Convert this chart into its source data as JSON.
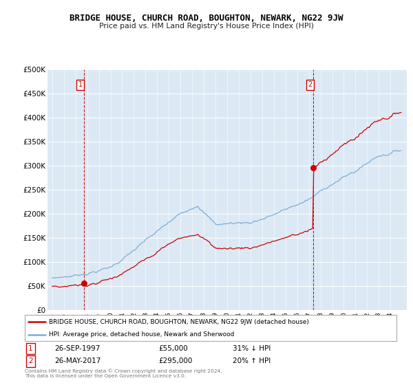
{
  "title": "BRIDGE HOUSE, CHURCH ROAD, BOUGHTON, NEWARK, NG22 9JW",
  "subtitle": "Price paid vs. HM Land Registry's House Price Index (HPI)",
  "legend_line1": "BRIDGE HOUSE, CHURCH ROAD, BOUGHTON, NEWARK, NG22 9JW (detached house)",
  "legend_line2": "HPI: Average price, detached house, Newark and Sherwood",
  "transaction1_date": "26-SEP-1997",
  "transaction1_price": "£55,000",
  "transaction1_hpi": "31% ↓ HPI",
  "transaction2_date": "26-MAY-2017",
  "transaction2_price": "£295,000",
  "transaction2_hpi": "20% ↑ HPI",
  "footer": "Contains HM Land Registry data © Crown copyright and database right 2024.\nThis data is licensed under the Open Government Licence v3.0.",
  "property_color": "#cc0000",
  "hpi_color": "#7eadd4",
  "vline_color": "#cc0000",
  "background_color": "#ffffff",
  "plot_bg_color": "#dce9f5",
  "ylim": [
    0,
    500000
  ],
  "yticks": [
    0,
    50000,
    100000,
    150000,
    200000,
    250000,
    300000,
    350000,
    400000,
    450000,
    500000
  ],
  "transaction1_year": 1997.73,
  "transaction1_value": 55000,
  "transaction2_year": 2017.4,
  "transaction2_value": 295000
}
